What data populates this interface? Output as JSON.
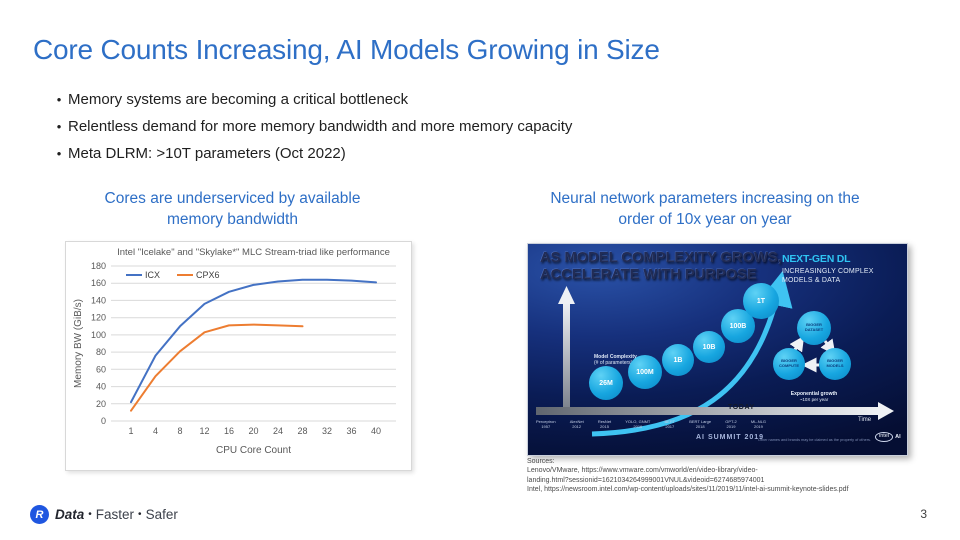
{
  "slide": {
    "title": "Core Counts Increasing, AI Models Growing in Size",
    "bullet_char": "•",
    "bullets": [
      "Memory systems are becoming a critical bottleneck",
      "Relentless demand for more memory bandwidth and more memory capacity",
      "Meta DLRM: >10T parameters (Oct 2022)"
    ],
    "page_number": "3"
  },
  "left_panel": {
    "heading_line1": "Cores are underserviced by available",
    "heading_line2": "memory bandwidth"
  },
  "chart_data": {
    "type": "line",
    "title": "Intel \"Icelake\" and \"Skylake*\" MLC Stream-triad like performance",
    "xlabel": "CPU Core Count",
    "ylabel": "Memory BW (GiB/s)",
    "x_ticks": [
      1,
      4,
      8,
      12,
      16,
      20,
      24,
      28,
      32,
      36,
      40
    ],
    "ylim": [
      0,
      180
    ],
    "y_tick_step": 20,
    "grid": true,
    "legend_position": "top-left",
    "series": [
      {
        "name": "ICX",
        "color": "#4472C4",
        "x": [
          1,
          4,
          8,
          12,
          16,
          20,
          24,
          28,
          32,
          36,
          40
        ],
        "y": [
          22,
          76,
          110,
          136,
          150,
          158,
          162,
          164,
          164,
          163,
          161
        ]
      },
      {
        "name": "CPX6",
        "color": "#ED7D31",
        "x": [
          1,
          4,
          8,
          12,
          16,
          20,
          24,
          28
        ],
        "y": [
          12,
          52,
          81,
          103,
          111,
          112,
          111,
          110
        ]
      }
    ]
  },
  "right_panel": {
    "heading_line1": "Neural network parameters increasing on the",
    "heading_line2": "order of 10x year on year",
    "intel_slide": {
      "headline_line1": "AS MODEL COMPLEXITY GROWS,",
      "headline_line2": "ACCELERATE WITH PURPOSE",
      "nextgen_title": "NEXT-GEN DL",
      "nextgen_sub_line1": "INCREASINGLY COMPLEX",
      "nextgen_sub_line2": "MODELS & DATA",
      "y_axis_label_line1": "Model Complexity",
      "y_axis_label_line2": "(# of parameters)",
      "bubbles": [
        "26M",
        "100M",
        "1B",
        "10B",
        "100B",
        "1T"
      ],
      "cycle_bubbles": [
        "BIGGER DATASET",
        "BIGGER COMPUTE",
        "BIGGER MODELS"
      ],
      "growth_note_line1": "Exponential growth",
      "growth_note_line2": "~10X per year",
      "today_label": "TODAY",
      "time_label": "Time",
      "milestones": [
        {
          "name": "Perceptron",
          "year": "1957"
        },
        {
          "name": "AlexNet",
          "year": "2012"
        },
        {
          "name": "ResNet",
          "year": "2015"
        },
        {
          "name": "YOLO, GNMT",
          "year": "2016"
        },
        {
          "name": "BERT",
          "year": "2017"
        },
        {
          "name": "BERT Large",
          "year": "2018"
        },
        {
          "name": "GPT-2",
          "year": "2019"
        },
        {
          "name": "ML-NLG",
          "year": "2019"
        }
      ],
      "event_label": "AI SUMMIT 2019",
      "disclaimer": "Other names and brands may be claimed as the property of others.",
      "intel_logo_text": "intel",
      "intel_ai_text": "AI"
    }
  },
  "sources": {
    "label": "Sources:",
    "lines": [
      "Lenovo/VMware, https://www.vmware.com/vmworld/en/video-library/video-",
      "landing.html?sessionid=1621034264999001VNUL&videoid=6274685974001",
      "Intel, https://newsroom.intel.com/wp-content/uploads/sites/11/2019/11/intel-ai-summit-keynote-slides.pdf"
    ]
  },
  "footer": {
    "logo_letter": "R",
    "word1": "Data",
    "sep": "•",
    "word2": "Faster",
    "word3": "Safer"
  },
  "colors": {
    "accent_blue": "#2e6fc6",
    "icx_line": "#4472C4",
    "cpx6_line": "#ED7D31",
    "intel_cyan": "#2fc5f3",
    "bubble_blue": "#17a6e0",
    "logo_blue": "#1f56e0"
  }
}
